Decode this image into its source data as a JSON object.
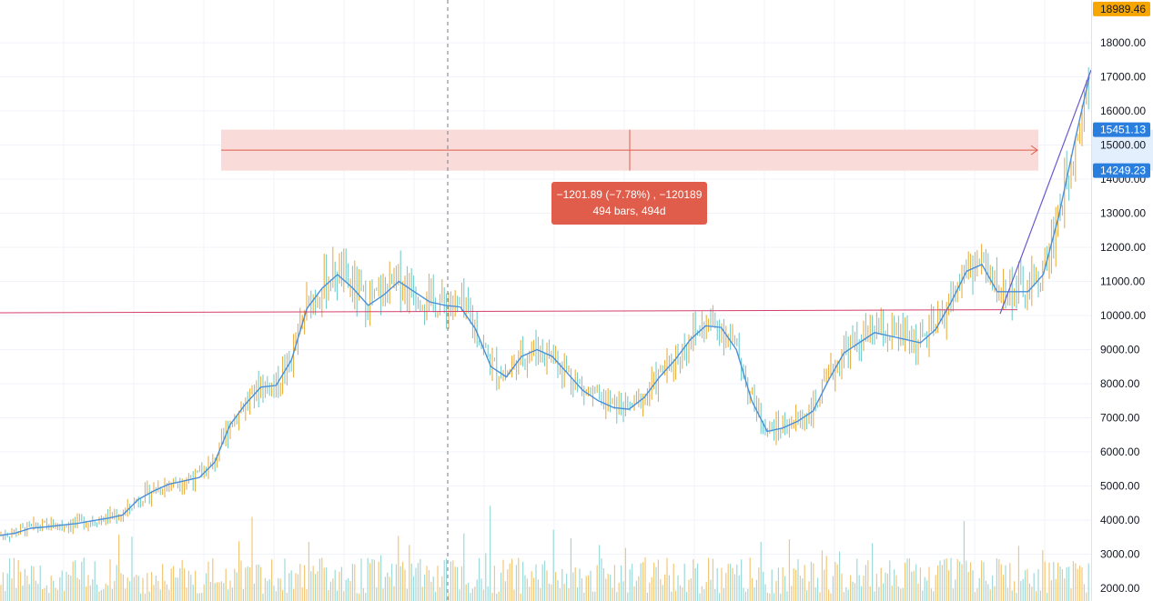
{
  "chart_data": {
    "type": "candlestick",
    "price_axis": {
      "ticks": [
        2000,
        3000,
        4000,
        5000,
        6000,
        7000,
        8000,
        9000,
        10000,
        11000,
        12000,
        13000,
        14000,
        15000,
        16000,
        17000,
        18000
      ],
      "tick_labels": [
        "2000.00",
        "3000.00",
        "4000.00",
        "5000.00",
        "6000.00",
        "7000.00",
        "8000.00",
        "9000.00",
        "10000.00",
        "11000.00",
        "12000.00",
        "13000.00",
        "14000.00",
        "15000.00",
        "16000.00",
        "17000.00",
        "18000.00"
      ],
      "range": [
        1600,
        19400
      ]
    },
    "last_price": {
      "value": 18989.46,
      "label": "18989.46",
      "color": "#f7a600"
    },
    "measure_range": {
      "upper": {
        "value": 15451.13,
        "label": "15451.13"
      },
      "lower": {
        "value": 14249.23,
        "label": "14249.23"
      },
      "line1": "−1201.89 (−7.78%) , −120189",
      "line2": "494 bars, 494d",
      "fill_color": "#f8d6d2",
      "label_color": "#e05d4b"
    },
    "horizontal_line": {
      "value": 10080,
      "end_value": 10170,
      "color": "#d43f6b"
    },
    "moving_average": {
      "color": "#4a90d9",
      "values": [
        3550,
        3620,
        3760,
        3800,
        3850,
        3900,
        3980,
        4050,
        4150,
        4600,
        4850,
        5050,
        5150,
        5250,
        5700,
        6800,
        7400,
        7900,
        7950,
        8700,
        10200,
        10800,
        11200,
        10800,
        10300,
        10600,
        11000,
        10700,
        10400,
        10300,
        10250,
        9600,
        8500,
        8200,
        8800,
        9000,
        8800,
        8300,
        7800,
        7500,
        7300,
        7250,
        7600,
        8200,
        8700,
        9300,
        9700,
        9650,
        9000,
        7500,
        6600,
        6700,
        6900,
        7200,
        8100,
        8900,
        9200,
        9500,
        9400,
        9300,
        9200,
        9600,
        10400,
        11300,
        11500,
        10700,
        10700,
        10700,
        11200,
        12900,
        15000,
        17000
      ]
    },
    "trend_line": {
      "start": 10050,
      "end": 17200,
      "color": "#6a5acd"
    },
    "colors": {
      "up": "#e8a735",
      "down": "#6cc6c8",
      "grid": "#f0f3fa",
      "volume_up": "#f2c77a",
      "volume_down": "#9fd9da"
    }
  }
}
